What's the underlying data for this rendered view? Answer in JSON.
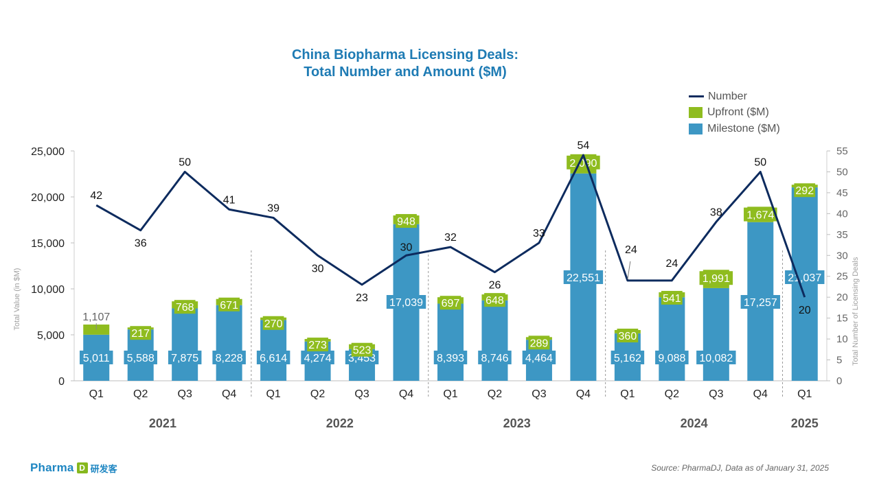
{
  "title": {
    "line1": "China Biopharma Licensing Deals:",
    "line2": "Total Number and Amount ($M)"
  },
  "legend": {
    "number": "Number",
    "upfront": "Upfront ($M)",
    "milestone": "Milestone ($M)"
  },
  "colors": {
    "title": "#1e7bb4",
    "milestone": "#3d97c4",
    "upfront": "#8fbc1f",
    "number_line": "#0d2b5e"
  },
  "logo": {
    "brand": "Pharma",
    "icon": "D",
    "chinese": "研发客"
  },
  "source": "Source: PharmaDJ, Data as of January 31, 2025",
  "chart_data": {
    "type": "bar",
    "stacked": true,
    "secondary_type": "line",
    "categories": [
      "Q1",
      "Q2",
      "Q3",
      "Q4",
      "Q1",
      "Q2",
      "Q3",
      "Q4",
      "Q1",
      "Q2",
      "Q3",
      "Q4",
      "Q1",
      "Q2",
      "Q3",
      "Q4",
      "Q1"
    ],
    "groups": [
      {
        "label": "2021",
        "count": 4
      },
      {
        "label": "2022",
        "count": 4
      },
      {
        "label": "2023",
        "count": 4
      },
      {
        "label": "2024",
        "count": 4
      },
      {
        "label": "2025",
        "count": 1
      }
    ],
    "series": [
      {
        "name": "Milestone ($M)",
        "axis": "left",
        "values": [
          5011,
          5588,
          7875,
          8228,
          6614,
          4274,
          3453,
          17039,
          8393,
          8746,
          4464,
          22551,
          5162,
          9088,
          10082,
          17257,
          21037
        ]
      },
      {
        "name": "Upfront ($M)",
        "axis": "left",
        "values": [
          1107,
          217,
          768,
          671,
          270,
          273,
          523,
          948,
          697,
          648,
          289,
          2090,
          360,
          541,
          1991,
          1674,
          292
        ]
      },
      {
        "name": "Number",
        "axis": "right",
        "values": [
          42,
          36,
          50,
          41,
          39,
          30,
          23,
          30,
          32,
          26,
          33,
          54,
          24,
          24,
          38,
          50,
          20
        ]
      }
    ],
    "ylabel": "Total Value (in $M)",
    "y2label": "Total Number of Licensing Deals",
    "ylim": [
      0,
      25000
    ],
    "yticks": [
      0,
      5000,
      10000,
      15000,
      20000,
      25000
    ],
    "ytick_labels": [
      "0",
      "5,000",
      "10,000",
      "15,000",
      "20,000",
      "25,000"
    ],
    "y2lim": [
      0,
      55
    ],
    "y2ticks": [
      0,
      5,
      10,
      15,
      20,
      25,
      30,
      35,
      40,
      45,
      50,
      55
    ],
    "legend_position": "top-right"
  }
}
